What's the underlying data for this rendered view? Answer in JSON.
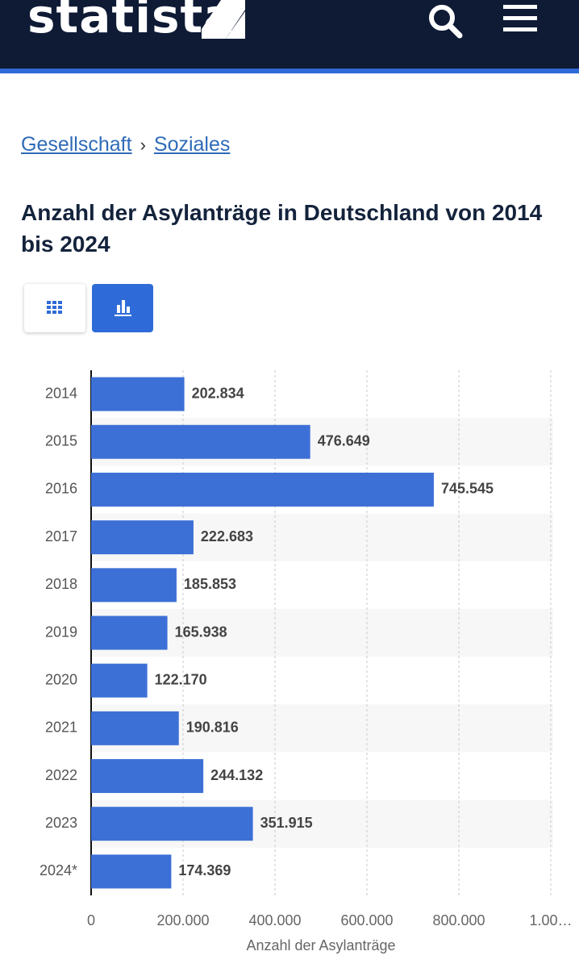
{
  "header": {
    "logo": "statista"
  },
  "breadcrumb": {
    "items": [
      "Gesellschaft",
      "Soziales"
    ],
    "separator": "›"
  },
  "chart_data": {
    "type": "bar",
    "orientation": "horizontal",
    "title": "Anzahl der Asylanträge in Deutschland von 2014 bis 2024",
    "categories": [
      "2014",
      "2015",
      "2016",
      "2017",
      "2018",
      "2019",
      "2020",
      "2021",
      "2022",
      "2023",
      "2024*"
    ],
    "values": [
      202834,
      476649,
      745545,
      222683,
      185853,
      165938,
      122170,
      190816,
      244132,
      351915,
      174369
    ],
    "value_labels": [
      "202.834",
      "476.649",
      "745.545",
      "222.683",
      "185.853",
      "165.938",
      "122.170",
      "190.816",
      "244.132",
      "351.915",
      "174.369"
    ],
    "color": "#3d70d6",
    "xlabel": "Anzahl der Asylanträge",
    "xlim": [
      0,
      1000000
    ],
    "xticks": [
      0,
      {
        "value": 200000,
        "label": "200.000"
      },
      {
        "value": 400000,
        "label": "400.000"
      },
      {
        "value": 600000,
        "label": "600.000"
      },
      {
        "value": 800000,
        "label": "800.000"
      },
      {
        "value": 1000000,
        "label": "1.00…"
      }
    ],
    "grid": true
  }
}
